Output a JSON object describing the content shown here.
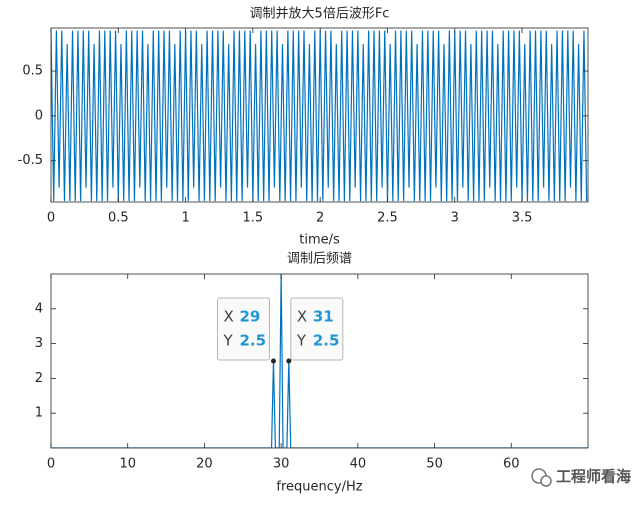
{
  "chart_data": [
    {
      "type": "line",
      "title": "调制并放大5倍后波形Fc",
      "x_label": "time/s",
      "color": "#0072bd",
      "xlim": [
        0,
        3.99
      ],
      "ylim": [
        -0.96,
        0.98
      ],
      "xticks": [
        0,
        0.5,
        1,
        1.5,
        2,
        2.5,
        3,
        3.5
      ],
      "yticks": [
        -0.5,
        0,
        0.5
      ],
      "x": [
        0,
        0.02,
        0.04,
        0.06,
        0.08,
        0.1,
        0.12,
        0.14,
        0.16,
        0.18,
        0.2,
        0.22,
        0.24,
        0.26,
        0.28,
        0.3,
        0.32,
        0.34,
        0.36,
        0.38,
        0.4,
        0.42,
        0.44,
        0.46,
        0.48,
        0.5,
        0.52,
        0.54,
        0.56,
        0.58,
        0.6,
        0.62,
        0.64,
        0.66,
        0.68,
        0.7,
        0.72,
        0.74,
        0.76,
        0.78,
        0.8,
        0.82,
        0.84,
        0.86,
        0.88,
        0.9,
        0.92,
        0.94,
        0.96,
        0.98,
        1,
        1.02,
        1.04,
        1.06,
        1.08,
        1.1,
        1.12,
        1.14,
        1.16,
        1.18,
        1.2,
        1.22,
        1.24,
        1.26,
        1.28,
        1.3,
        1.32,
        1.34,
        1.36,
        1.38,
        1.4,
        1.42,
        1.44,
        1.46,
        1.48,
        1.5,
        1.52,
        1.54,
        1.56,
        1.58,
        1.6,
        1.62,
        1.64,
        1.66,
        1.68,
        1.7,
        1.72,
        1.74,
        1.76,
        1.78,
        1.8,
        1.82,
        1.84,
        1.86,
        1.88,
        1.9,
        1.92,
        1.94,
        1.96,
        1.98,
        2,
        2.02,
        2.04,
        2.06,
        2.08,
        2.1,
        2.12,
        2.14,
        2.16,
        2.18,
        2.2,
        2.22,
        2.24,
        2.26,
        2.28,
        2.3,
        2.32,
        2.34,
        2.36,
        2.38,
        2.4,
        2.42,
        2.44,
        2.46,
        2.48,
        2.5,
        2.52,
        2.54,
        2.56,
        2.58,
        2.6,
        2.62,
        2.64,
        2.66,
        2.68,
        2.7,
        2.72,
        2.74,
        2.76,
        2.78,
        2.8,
        2.82,
        2.84,
        2.86,
        2.88,
        2.9,
        2.92,
        2.94,
        2.96,
        2.98,
        3,
        3.02,
        3.04,
        3.06,
        3.08,
        3.1,
        3.12,
        3.14,
        3.16,
        3.18,
        3.2,
        3.22,
        3.24,
        3.26,
        3.28,
        3.3,
        3.32,
        3.34,
        3.36,
        3.38,
        3.4,
        3.42,
        3.44,
        3.46,
        3.48,
        3.5,
        3.52,
        3.54,
        3.56,
        3.58,
        3.6,
        3.62,
        3.64,
        3.66,
        3.68,
        3.7,
        3.72,
        3.74,
        3.76,
        3.78,
        3.8,
        3.82,
        3.84,
        3.86,
        3.88,
        3.9,
        3.92,
        3.94,
        3.96,
        3.98
      ],
      "values": [
        0.95,
        -0.95,
        0.95,
        -0.8,
        0.95,
        -0.95,
        0.8,
        -0.95,
        0.95,
        -0.95,
        0.95,
        -0.95,
        0.95,
        -0.8,
        0.95,
        -0.95,
        0.8,
        -0.95,
        0.95,
        -0.95,
        0.95,
        -0.95,
        0.95,
        -0.8,
        0.95,
        -0.95,
        0.8,
        -0.95,
        0.95,
        -0.95,
        0.95,
        -0.95,
        0.95,
        -0.8,
        0.95,
        -0.95,
        0.8,
        -0.95,
        0.95,
        -0.95,
        0.95,
        -0.95,
        0.95,
        -0.8,
        0.95,
        -0.95,
        0.8,
        -0.95,
        0.95,
        -0.95,
        0.95,
        -0.95,
        0.95,
        -0.8,
        0.95,
        -0.95,
        0.8,
        -0.95,
        0.95,
        -0.95,
        0.95,
        -0.95,
        0.95,
        -0.8,
        0.95,
        -0.95,
        0.8,
        -0.95,
        0.95,
        -0.95,
        0.95,
        -0.95,
        0.95,
        -0.8,
        0.95,
        -0.95,
        0.8,
        -0.95,
        0.95,
        -0.95,
        0.95,
        -0.95,
        0.95,
        -0.8,
        0.95,
        -0.95,
        0.8,
        -0.95,
        0.95,
        -0.95,
        0.95,
        -0.95,
        0.95,
        -0.8,
        0.95,
        -0.95,
        0.8,
        -0.95,
        0.95,
        -0.95,
        0.95,
        -0.95,
        0.95,
        -0.8,
        0.95,
        -0.95,
        0.8,
        -0.95,
        0.95,
        -0.95,
        0.95,
        -0.95,
        0.95,
        -0.8,
        0.95,
        -0.95,
        0.8,
        -0.95,
        0.95,
        -0.95,
        0.95,
        -0.95,
        0.95,
        -0.8,
        0.95,
        -0.95,
        0.8,
        -0.95,
        0.95,
        -0.95,
        0.95,
        -0.95,
        0.95,
        -0.8,
        0.95,
        -0.95,
        0.8,
        -0.95,
        0.95,
        -0.95,
        0.95,
        -0.95,
        0.95,
        -0.8,
        0.95,
        -0.95,
        0.8,
        -0.95,
        0.95,
        -0.95,
        0.95,
        -0.95,
        0.95,
        -0.8,
        0.95,
        -0.95,
        0.8,
        -0.95,
        0.95,
        -0.95,
        0.95,
        -0.95,
        0.95,
        -0.8,
        0.95,
        -0.95,
        0.8,
        -0.95,
        0.95,
        -0.95,
        0.95,
        -0.95,
        0.95,
        -0.8,
        0.95,
        -0.95,
        0.8,
        -0.95,
        0.95,
        -0.95,
        0.95,
        -0.95,
        0.95,
        -0.8,
        0.95,
        -0.95,
        0.8,
        -0.95,
        0.95,
        -0.95,
        0.95,
        -0.95,
        0.95,
        -0.8,
        0.95,
        -0.95,
        0.8,
        -0.95,
        0.95,
        -0.95
      ]
    },
    {
      "type": "line",
      "title": "调制后频谱",
      "x_label": "frequency/Hz",
      "color": "#0072bd",
      "xlim": [
        0,
        70
      ],
      "ylim": [
        0,
        5
      ],
      "xticks": [
        0,
        10,
        20,
        30,
        40,
        50,
        60
      ],
      "yticks": [
        1,
        2,
        3,
        4
      ],
      "x": [
        0,
        28.75,
        29,
        29.25,
        29.75,
        30,
        30.25,
        30.75,
        31,
        31.25,
        70
      ],
      "values": [
        0,
        0,
        2.5,
        0,
        0,
        5,
        0,
        0,
        2.5,
        0,
        0
      ],
      "datatips": [
        {
          "x_key": "X",
          "x": 29,
          "y_key": "Y",
          "y": 2.5
        },
        {
          "x_key": "X",
          "x": 31,
          "y_key": "Y",
          "y": 2.5
        }
      ]
    }
  ],
  "watermark": "工程师看海"
}
